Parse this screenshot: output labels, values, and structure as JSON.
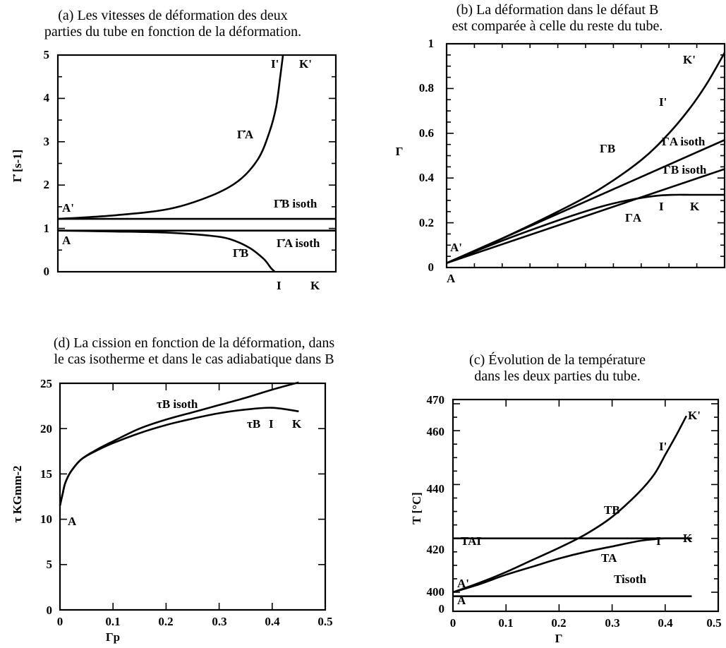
{
  "chart_data": [
    {
      "id": "a",
      "type": "line",
      "title": [
        "(a) Les vitesses de déformation des deux",
        "parties du tube en fonction de la déformation."
      ],
      "ylabel": "Γ̇ [s-1]",
      "xlabel": "",
      "ylim": [
        0,
        5
      ],
      "yticks": [
        "0",
        "1",
        "2",
        "3",
        "4",
        "5"
      ],
      "xticks_hidden": true,
      "series": [
        {
          "label": "Γ̇A",
          "x": [
            0,
            0.2,
            0.4,
            0.55,
            0.65,
            0.72,
            0.76,
            0.785,
            0.8,
            0.81
          ],
          "y": [
            1.22,
            1.3,
            1.45,
            1.75,
            2.1,
            2.6,
            3.2,
            3.8,
            4.5,
            5.0
          ]
        },
        {
          "label": "Γ̇B isoth",
          "x": [
            0,
            1
          ],
          "y": [
            1.22,
            1.22
          ]
        },
        {
          "label": "Γ̇A isoth",
          "x": [
            0,
            1
          ],
          "y": [
            0.95,
            0.95
          ]
        },
        {
          "label": "Γ̇B",
          "x": [
            0,
            0.2,
            0.4,
            0.55,
            0.62,
            0.69,
            0.74,
            0.765,
            0.78
          ],
          "y": [
            0.95,
            0.93,
            0.9,
            0.83,
            0.75,
            0.55,
            0.3,
            0.1,
            0.0
          ]
        }
      ],
      "annotations": [
        "A'",
        "A",
        "I'",
        "K'",
        "I",
        "K"
      ]
    },
    {
      "id": "b",
      "type": "line",
      "title": [
        "(b) La déformation dans le défaut B",
        "est comparée à celle du reste du tube."
      ],
      "ylabel": "Γ",
      "xlabel": "",
      "ylim": [
        0,
        1
      ],
      "yticks": [
        "0",
        "0.2",
        "0.4",
        "0.6",
        "0.8",
        "1"
      ],
      "xticks_hidden": true,
      "series": [
        {
          "label": "ΓB",
          "x": [
            0,
            0.2,
            0.4,
            0.55,
            0.7,
            0.8,
            0.88,
            0.94,
            1.0
          ],
          "y": [
            0.02,
            0.13,
            0.25,
            0.35,
            0.48,
            0.6,
            0.72,
            0.83,
            0.96
          ]
        },
        {
          "label": "ΓA isoth",
          "x": [
            0,
            1
          ],
          "y": [
            0.02,
            0.57
          ]
        },
        {
          "label": "ΓB isoth",
          "x": [
            0,
            1
          ],
          "y": [
            0.02,
            0.44
          ]
        },
        {
          "label": "ΓA",
          "x": [
            0,
            0.2,
            0.4,
            0.55,
            0.65,
            0.75,
            0.82,
            0.88,
            1.0
          ],
          "y": [
            0.02,
            0.12,
            0.21,
            0.27,
            0.3,
            0.32,
            0.325,
            0.325,
            0.325
          ]
        }
      ],
      "annotations": [
        "A'",
        "A",
        "K'",
        "I'",
        "I",
        "K"
      ]
    },
    {
      "id": "d",
      "type": "line",
      "title": [
        "(d) La cission en fonction de la déformation, dans",
        "le cas isotherme et dans le cas adiabatique dans B"
      ],
      "ylabel": "τ KGmm-2",
      "xlabel": "Γp",
      "ylim": [
        0,
        25
      ],
      "xlim": [
        0,
        0.5
      ],
      "yticks": [
        "0",
        "5",
        "10",
        "15",
        "20",
        "25"
      ],
      "xticks": [
        "0",
        "0.1",
        "0.2",
        "0.3",
        "0.4",
        "0.5"
      ],
      "series": [
        {
          "label": "τB isoth",
          "x": [
            0,
            0.005,
            0.01,
            0.02,
            0.04,
            0.07,
            0.1,
            0.15,
            0.2,
            0.25,
            0.3,
            0.35,
            0.4,
            0.45
          ],
          "y": [
            11.5,
            12.8,
            14.0,
            15.2,
            16.6,
            17.7,
            18.6,
            20.0,
            21.0,
            21.8,
            22.6,
            23.4,
            24.3,
            25.1
          ]
        },
        {
          "label": "τB",
          "x": [
            0,
            0.005,
            0.01,
            0.02,
            0.04,
            0.07,
            0.1,
            0.15,
            0.2,
            0.25,
            0.3,
            0.35,
            0.4,
            0.45
          ],
          "y": [
            11.5,
            12.8,
            14.0,
            15.2,
            16.6,
            17.6,
            18.4,
            19.5,
            20.4,
            21.1,
            21.7,
            22.1,
            22.3,
            21.9
          ]
        }
      ],
      "annotations": [
        "A",
        "I",
        "K"
      ]
    },
    {
      "id": "c",
      "type": "line",
      "title": [
        "(c) Évolution de la température",
        "dans les deux parties du tube."
      ],
      "ylabel": "T [°C]",
      "xlabel": "Γ",
      "xlim": [
        0,
        0.5
      ],
      "yticks": [
        "0",
        "400",
        "420",
        "440",
        "460",
        "470"
      ],
      "xticks": [
        "0",
        "0.1",
        "0.2",
        "0.3",
        "0.4",
        "0.5"
      ],
      "series": [
        {
          "label": "TB",
          "x": [
            0,
            0.05,
            0.1,
            0.15,
            0.2,
            0.25,
            0.3,
            0.35,
            0.38,
            0.4,
            0.42,
            0.44
          ],
          "y": [
            400,
            403.5,
            407.5,
            412,
            416.5,
            421.5,
            428,
            437,
            444,
            451,
            458,
            465.5
          ]
        },
        {
          "label": "TA",
          "x": [
            0,
            0.05,
            0.1,
            0.15,
            0.2,
            0.25,
            0.3,
            0.35,
            0.38,
            0.4,
            0.45
          ],
          "y": [
            400,
            403,
            406.5,
            409.5,
            412.5,
            415,
            417,
            419,
            419.7,
            420,
            420
          ]
        },
        {
          "label": "TAI",
          "x": [
            0,
            0.45
          ],
          "y": [
            420,
            420
          ]
        },
        {
          "label": "Tisoth",
          "x": [
            0,
            0.45
          ],
          "y": [
            398.5,
            398.5
          ]
        }
      ],
      "annotations": [
        "A'",
        "A",
        "I'",
        "K'",
        "I",
        "K"
      ]
    }
  ]
}
